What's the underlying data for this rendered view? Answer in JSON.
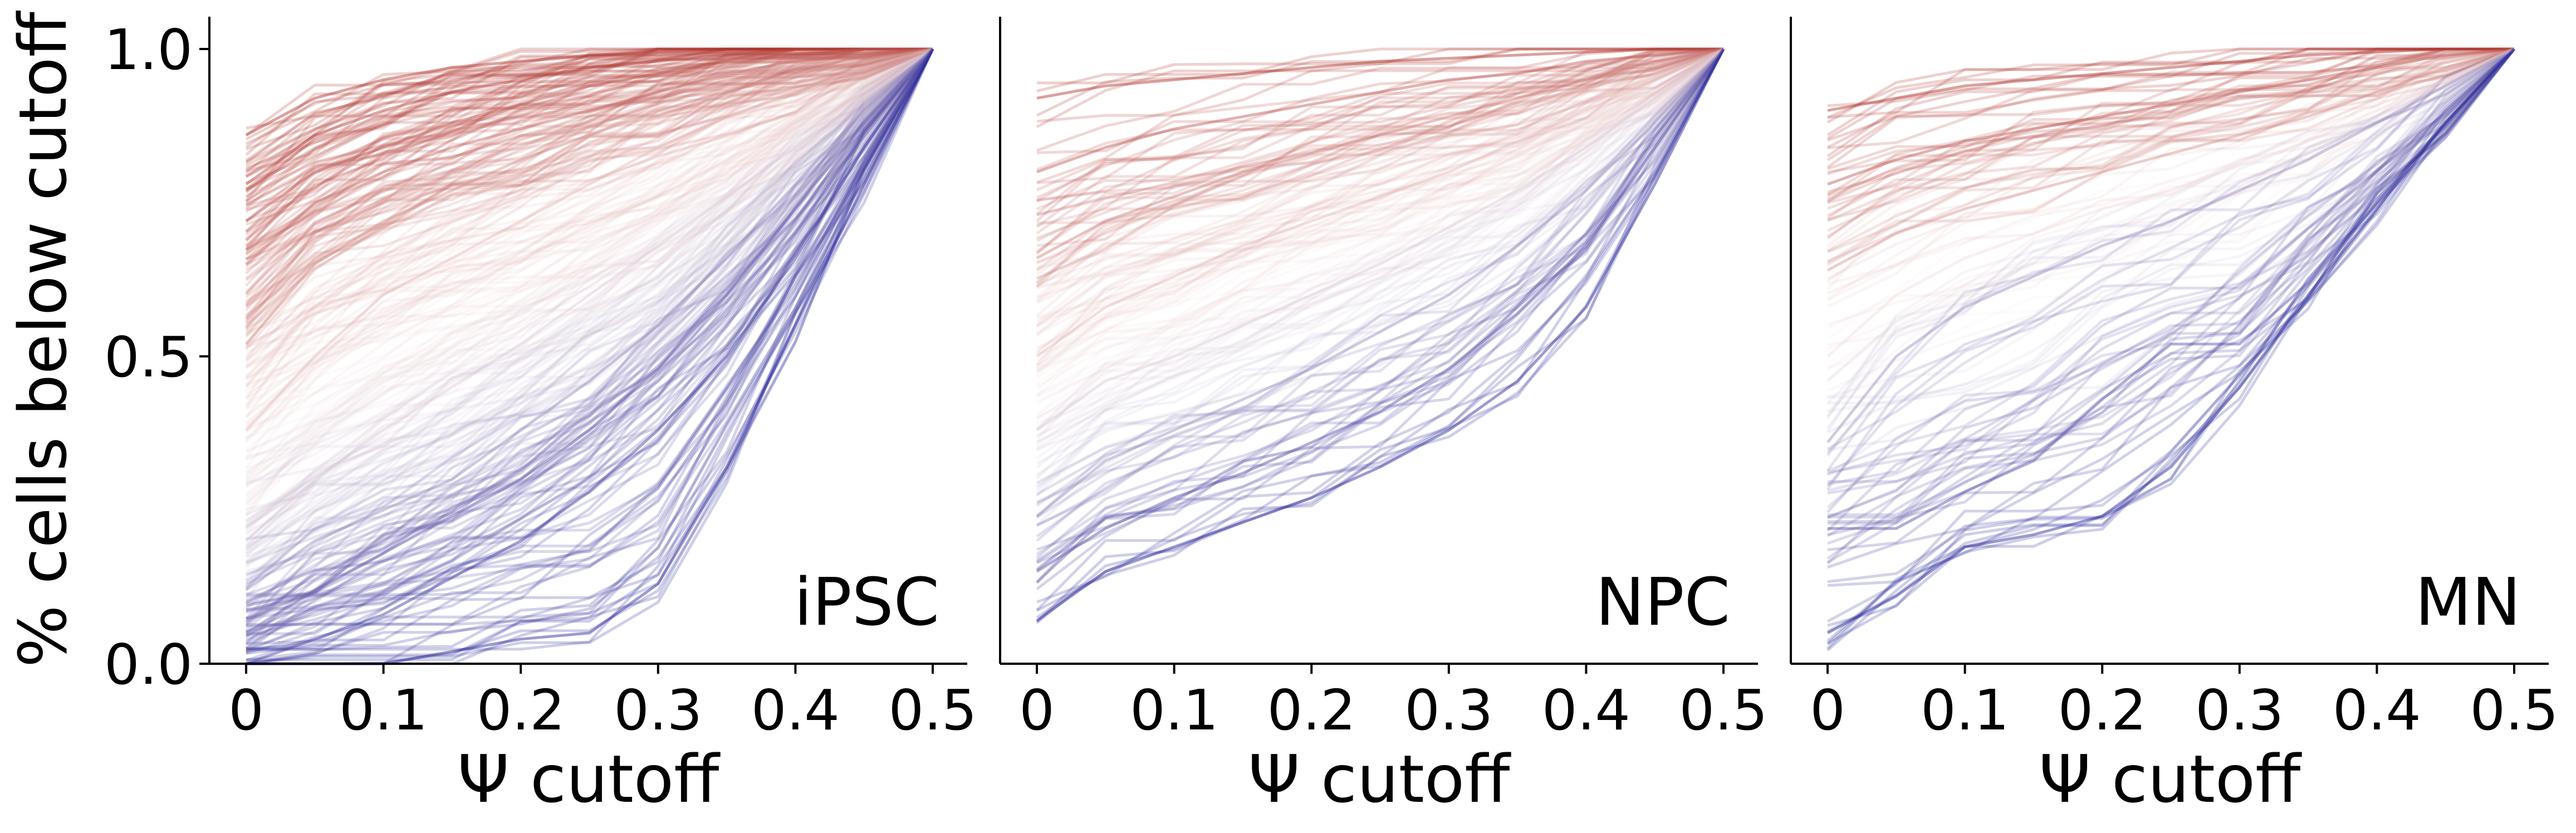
{
  "figure": {
    "ylabel": "% cells below cutoff",
    "xlabel": "Ψ cutoff"
  },
  "chart_data": [
    {
      "type": "line",
      "panel_label": "iPSC",
      "xlabel": "Ψ cutoff",
      "ylabel": "% cells below cutoff",
      "x": [
        0,
        0.05,
        0.1,
        0.15,
        0.2,
        0.25,
        0.3,
        0.35,
        0.4,
        0.45,
        0.5
      ],
      "xticks": [
        "0",
        "0.1",
        "0.2",
        "0.3",
        "0.4",
        "0.5"
      ],
      "xtick_values": [
        0,
        0.1,
        0.2,
        0.3,
        0.4,
        0.5
      ],
      "yticks": [
        "0.0",
        "0.5",
        "1.0"
      ],
      "ytick_values": [
        0,
        0.5,
        1.0
      ],
      "xlim": [
        -0.02,
        0.52
      ],
      "ylim": [
        0,
        1.05
      ],
      "grid": false,
      "color_scale": {
        "low": "#0b0b8c",
        "mid": "#f2dede",
        "high": "#a51a12"
      },
      "series_count": 300,
      "series_shown_sample": [
        {
          "color_value": 0.95,
          "values": [
            0.86,
            0.92,
            0.95,
            0.97,
            0.98,
            0.99,
            0.995,
            1.0,
            1.0,
            1.0,
            1.0
          ]
        },
        {
          "color_value": 0.9,
          "values": [
            0.78,
            0.86,
            0.9,
            0.93,
            0.95,
            0.97,
            0.98,
            0.99,
            1.0,
            1.0,
            1.0
          ]
        },
        {
          "color_value": 0.85,
          "values": [
            0.72,
            0.8,
            0.84,
            0.88,
            0.91,
            0.94,
            0.96,
            0.98,
            0.99,
            1.0,
            1.0
          ]
        },
        {
          "color_value": 0.8,
          "values": [
            0.65,
            0.75,
            0.8,
            0.84,
            0.87,
            0.9,
            0.93,
            0.96,
            0.98,
            0.99,
            1.0
          ]
        },
        {
          "color_value": 0.7,
          "values": [
            0.52,
            0.65,
            0.72,
            0.77,
            0.82,
            0.86,
            0.9,
            0.93,
            0.96,
            0.98,
            1.0
          ]
        },
        {
          "color_value": 0.6,
          "values": [
            0.38,
            0.5,
            0.6,
            0.66,
            0.72,
            0.78,
            0.84,
            0.89,
            0.93,
            0.97,
            1.0
          ]
        },
        {
          "color_value": 0.45,
          "values": [
            0.2,
            0.3,
            0.38,
            0.45,
            0.52,
            0.6,
            0.68,
            0.76,
            0.84,
            0.92,
            1.0
          ]
        },
        {
          "color_value": 0.3,
          "values": [
            0.12,
            0.2,
            0.25,
            0.3,
            0.38,
            0.46,
            0.55,
            0.66,
            0.78,
            0.9,
            1.0
          ]
        },
        {
          "color_value": 0.2,
          "values": [
            0.05,
            0.12,
            0.18,
            0.24,
            0.3,
            0.38,
            0.48,
            0.6,
            0.74,
            0.88,
            1.0
          ]
        },
        {
          "color_value": 0.1,
          "values": [
            0.0,
            0.04,
            0.08,
            0.14,
            0.2,
            0.28,
            0.38,
            0.5,
            0.66,
            0.84,
            1.0
          ]
        },
        {
          "color_value": 0.05,
          "values": [
            0.0,
            0.0,
            0.0,
            0.02,
            0.04,
            0.05,
            0.13,
            0.32,
            0.55,
            0.78,
            1.0
          ]
        }
      ]
    },
    {
      "type": "line",
      "panel_label": "NPC",
      "xlabel": "Ψ cutoff",
      "x": [
        0,
        0.05,
        0.1,
        0.15,
        0.2,
        0.25,
        0.3,
        0.35,
        0.4,
        0.45,
        0.5
      ],
      "xticks": [
        "0",
        "0.1",
        "0.2",
        "0.3",
        "0.4",
        "0.5"
      ],
      "xtick_values": [
        0,
        0.1,
        0.2,
        0.3,
        0.4,
        0.5
      ],
      "xlim": [
        -0.02,
        0.52
      ],
      "ylim": [
        0,
        1.05
      ],
      "grid": false,
      "color_scale": {
        "low": "#0b0b8c",
        "mid": "#f2dede",
        "high": "#a51a12"
      },
      "series_count": 150,
      "series_shown_sample": [
        {
          "color_value": 0.95,
          "values": [
            0.92,
            0.94,
            0.95,
            0.96,
            0.97,
            0.98,
            0.985,
            0.99,
            0.995,
            1.0,
            1.0
          ]
        },
        {
          "color_value": 0.85,
          "values": [
            0.8,
            0.84,
            0.87,
            0.89,
            0.91,
            0.93,
            0.95,
            0.96,
            0.98,
            0.99,
            1.0
          ]
        },
        {
          "color_value": 0.75,
          "values": [
            0.66,
            0.72,
            0.76,
            0.8,
            0.83,
            0.86,
            0.89,
            0.92,
            0.95,
            0.98,
            1.0
          ]
        },
        {
          "color_value": 0.6,
          "values": [
            0.5,
            0.58,
            0.63,
            0.68,
            0.72,
            0.76,
            0.8,
            0.85,
            0.9,
            0.95,
            1.0
          ]
        },
        {
          "color_value": 0.45,
          "values": [
            0.38,
            0.46,
            0.5,
            0.55,
            0.6,
            0.65,
            0.71,
            0.77,
            0.84,
            0.92,
            1.0
          ]
        },
        {
          "color_value": 0.3,
          "values": [
            0.24,
            0.33,
            0.38,
            0.43,
            0.48,
            0.54,
            0.6,
            0.68,
            0.77,
            0.88,
            1.0
          ]
        },
        {
          "color_value": 0.15,
          "values": [
            0.15,
            0.22,
            0.27,
            0.31,
            0.36,
            0.41,
            0.48,
            0.57,
            0.68,
            0.84,
            1.0
          ]
        },
        {
          "color_value": 0.05,
          "values": [
            0.07,
            0.15,
            0.19,
            0.23,
            0.27,
            0.32,
            0.38,
            0.46,
            0.58,
            0.78,
            1.0
          ]
        }
      ]
    },
    {
      "type": "line",
      "panel_label": "MN",
      "xlabel": "Ψ cutoff",
      "x": [
        0,
        0.05,
        0.1,
        0.15,
        0.2,
        0.25,
        0.3,
        0.35,
        0.4,
        0.45,
        0.5
      ],
      "xticks": [
        "0",
        "0.1",
        "0.2",
        "0.3",
        "0.4",
        "0.5"
      ],
      "xtick_values": [
        0,
        0.1,
        0.2,
        0.3,
        0.4,
        0.5
      ],
      "xlim": [
        -0.02,
        0.52
      ],
      "ylim": [
        0,
        1.05
      ],
      "grid": false,
      "color_scale": {
        "low": "#0b0b8c",
        "mid": "#f2dede",
        "high": "#a51a12"
      },
      "series_count": 110,
      "series_shown_sample": [
        {
          "color_value": 0.95,
          "values": [
            0.9,
            0.92,
            0.94,
            0.95,
            0.96,
            0.97,
            0.98,
            0.99,
            0.995,
            1.0,
            1.0
          ]
        },
        {
          "color_value": 0.85,
          "values": [
            0.78,
            0.82,
            0.85,
            0.87,
            0.89,
            0.91,
            0.93,
            0.95,
            0.97,
            0.99,
            1.0
          ]
        },
        {
          "color_value": 0.7,
          "values": [
            0.64,
            0.7,
            0.74,
            0.77,
            0.8,
            0.83,
            0.86,
            0.89,
            0.93,
            0.97,
            1.0
          ]
        },
        {
          "color_value": 0.5,
          "values": [
            0.5,
            0.6,
            0.66,
            0.7,
            0.74,
            0.77,
            0.81,
            0.85,
            0.9,
            0.95,
            1.0
          ]
        },
        {
          "color_value": 0.3,
          "values": [
            0.36,
            0.5,
            0.58,
            0.63,
            0.68,
            0.72,
            0.77,
            0.82,
            0.88,
            0.94,
            1.0
          ]
        },
        {
          "color_value": 0.15,
          "values": [
            0.22,
            0.22,
            0.28,
            0.33,
            0.43,
            0.52,
            0.52,
            0.62,
            0.75,
            0.88,
            1.0
          ]
        },
        {
          "color_value": 0.05,
          "values": [
            0.05,
            0.11,
            0.19,
            0.21,
            0.24,
            0.32,
            0.45,
            0.6,
            0.74,
            0.88,
            1.0
          ]
        }
      ]
    }
  ]
}
